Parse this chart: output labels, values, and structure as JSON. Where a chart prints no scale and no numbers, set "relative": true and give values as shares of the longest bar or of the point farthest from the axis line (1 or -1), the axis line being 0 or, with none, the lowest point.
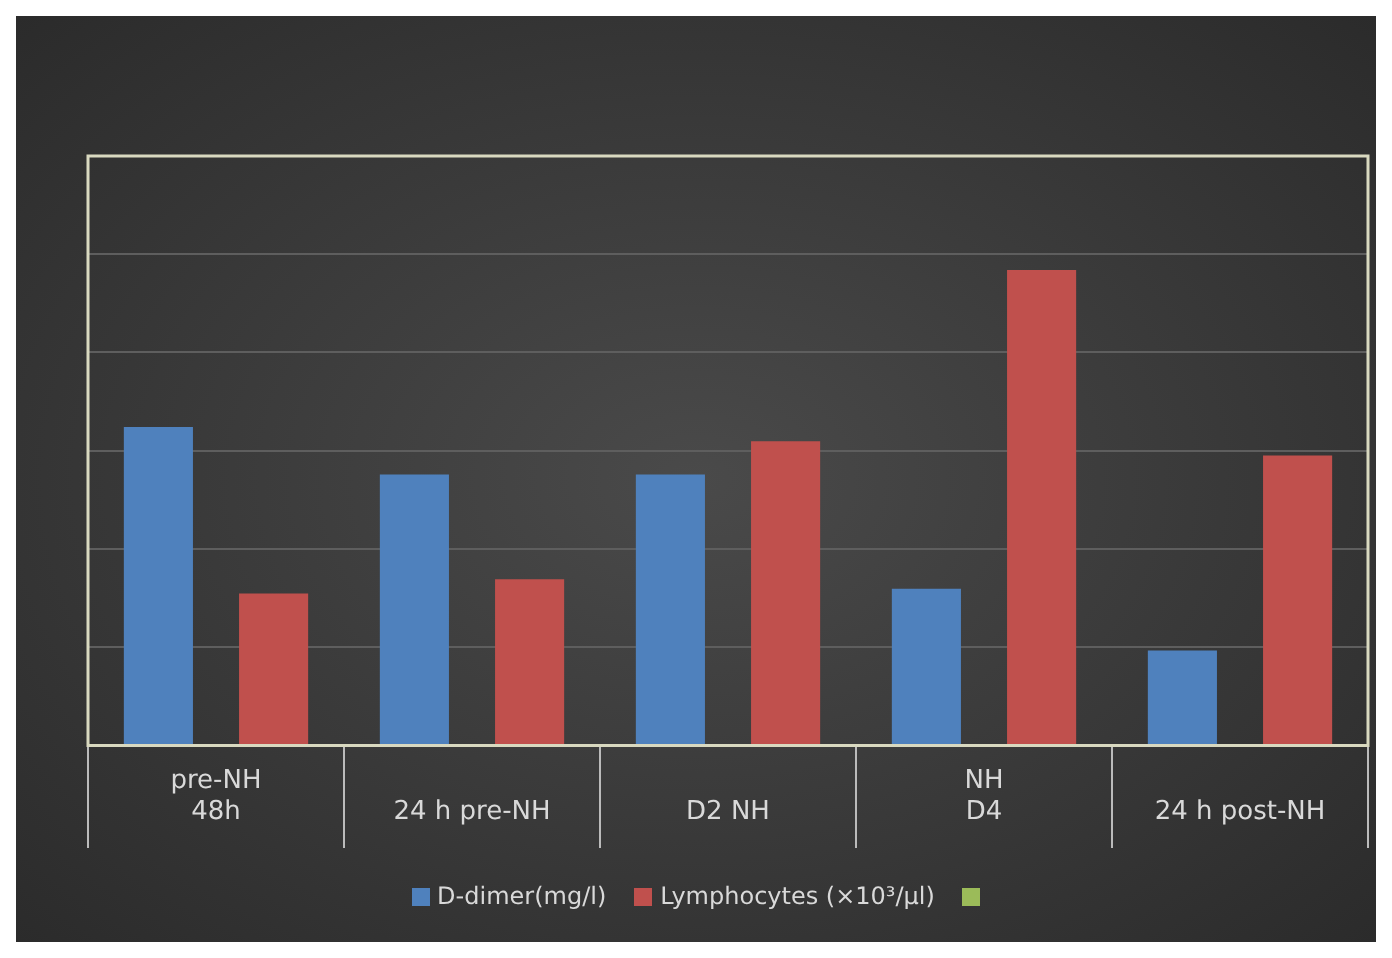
{
  "chart_data": {
    "type": "bar",
    "relative": true,
    "categories": [
      "48h",
      "24 h pre-NH",
      "D2 NH",
      "D4",
      "24 h post-NH"
    ],
    "series": [
      {
        "name": "D-dimer(mg/l)",
        "color": "#4f81bd",
        "values": [
          0.67,
          0.57,
          0.57,
          0.33,
          0.2
        ]
      },
      {
        "name": "Lymphocytes (×10³/µl)",
        "color": "#c0504d",
        "values": [
          0.32,
          0.35,
          0.64,
          1,
          0.61
        ]
      }
    ],
    "annotations": [
      "pre-NH",
      "NH"
    ],
    "grid": "y",
    "legend": "bottom"
  }
}
